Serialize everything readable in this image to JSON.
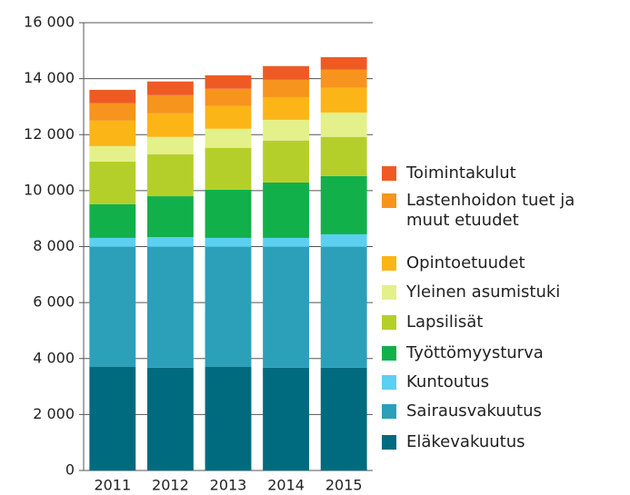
{
  "chart_data": {
    "type": "stacked_bar",
    "categories": [
      "2011",
      "2012",
      "2013",
      "2014",
      "2015"
    ],
    "series": [
      {
        "name": "Eläkevakuutus",
        "color": "#006b7f",
        "values": [
          3700,
          3670,
          3700,
          3670,
          3670
        ]
      },
      {
        "name": "Sairausvakuutus",
        "color": "#2ba0b8",
        "values": [
          4290,
          4320,
          4290,
          4320,
          4320
        ]
      },
      {
        "name": "Kuntoutus",
        "color": "#5bd0f0",
        "values": [
          320,
          350,
          320,
          320,
          450
        ]
      },
      {
        "name": "Työttömyysturva",
        "color": "#12b04a",
        "values": [
          1200,
          1460,
          1720,
          1980,
          2080
        ]
      },
      {
        "name": "Lapsilisät",
        "color": "#b5cf2a",
        "values": [
          1530,
          1500,
          1500,
          1500,
          1400
        ]
      },
      {
        "name": "Yleinen asumistuki",
        "color": "#e4f08a",
        "values": [
          550,
          620,
          680,
          740,
          870
        ]
      },
      {
        "name": "Opintoetuudet",
        "color": "#fbb516",
        "values": [
          910,
          840,
          810,
          810,
          880
        ]
      },
      {
        "name": "Lastenhoidon tuet ja muut etuudet",
        "color": "#f7941d",
        "values": [
          620,
          650,
          620,
          620,
          650
        ]
      },
      {
        "name": "Toimintakulut",
        "color": "#ef5a24",
        "values": [
          480,
          490,
          480,
          490,
          450
        ]
      }
    ],
    "ylim": [
      0,
      16000
    ],
    "yticks": [
      0,
      {
        "value": 2000,
        "label": "2 000"
      },
      {
        "value": 4000,
        "label": "4 000"
      },
      {
        "value": 6000,
        "label": "6 000"
      },
      {
        "value": 8000,
        "label": "8 000"
      },
      {
        "value": 10000,
        "label": "10 000"
      },
      {
        "value": 12000,
        "label": "12 000"
      },
      {
        "value": 14000,
        "label": "14 000"
      },
      {
        "value": 16000,
        "label": "16 000"
      }
    ],
    "grid": true,
    "legend": "right"
  }
}
